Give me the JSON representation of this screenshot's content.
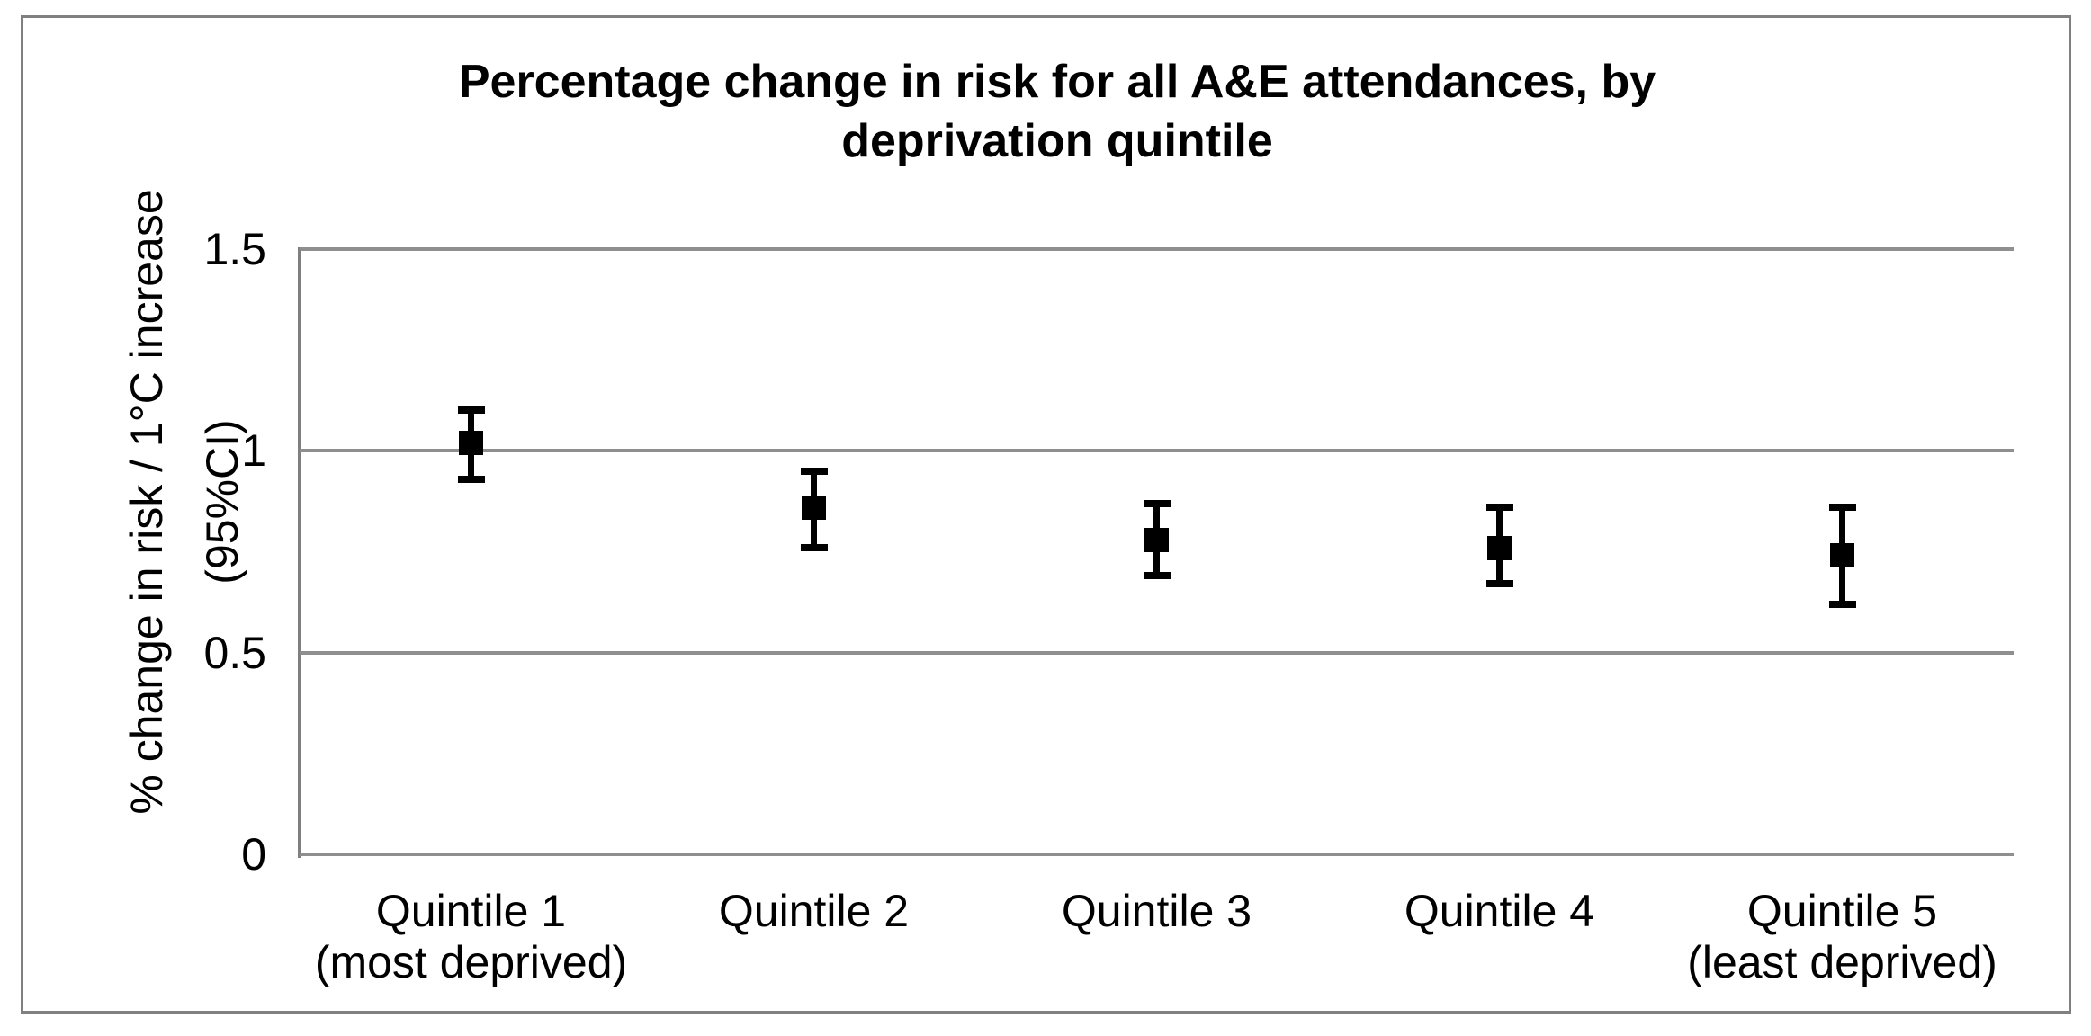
{
  "frame": {
    "border_color": "#808080"
  },
  "axis": {
    "y_label_line1": "% change in risk / 1°C increase",
    "y_label_line2": "(95%CI)"
  },
  "chart_data": {
    "type": "scatter",
    "title": "Percentage change in risk for all A&E attendances, by deprivation quintile",
    "xlabel": "",
    "ylabel": "% change in risk / 1°C increase (95%CI)",
    "categories": [
      "Quintile 1",
      "Quintile 2",
      "Quintile 3",
      "Quintile 4",
      "Quintile 5"
    ],
    "category_sublabels": [
      "(most deprived)",
      "",
      "",
      "",
      "(least deprived)"
    ],
    "series": [
      {
        "name": "% change in risk per 1°C increase (95% CI)",
        "values": [
          1.02,
          0.86,
          0.78,
          0.76,
          0.74
        ],
        "ci_low": [
          0.93,
          0.76,
          0.69,
          0.67,
          0.62
        ],
        "ci_high": [
          1.1,
          0.95,
          0.87,
          0.86,
          0.86
        ]
      }
    ],
    "ylim": [
      0,
      1.5
    ],
    "yticks": [
      0,
      0.5,
      1,
      1.5
    ],
    "ytick_labels": [
      "0",
      "0.5",
      "1",
      "1.5"
    ],
    "grid": true,
    "legend_position": "none",
    "marker_shape": "square",
    "marker_color": "#000000",
    "gridline_color": "#8f8f8f",
    "axis_line_color": "#7f7f7f",
    "frame_color": "#808080"
  }
}
